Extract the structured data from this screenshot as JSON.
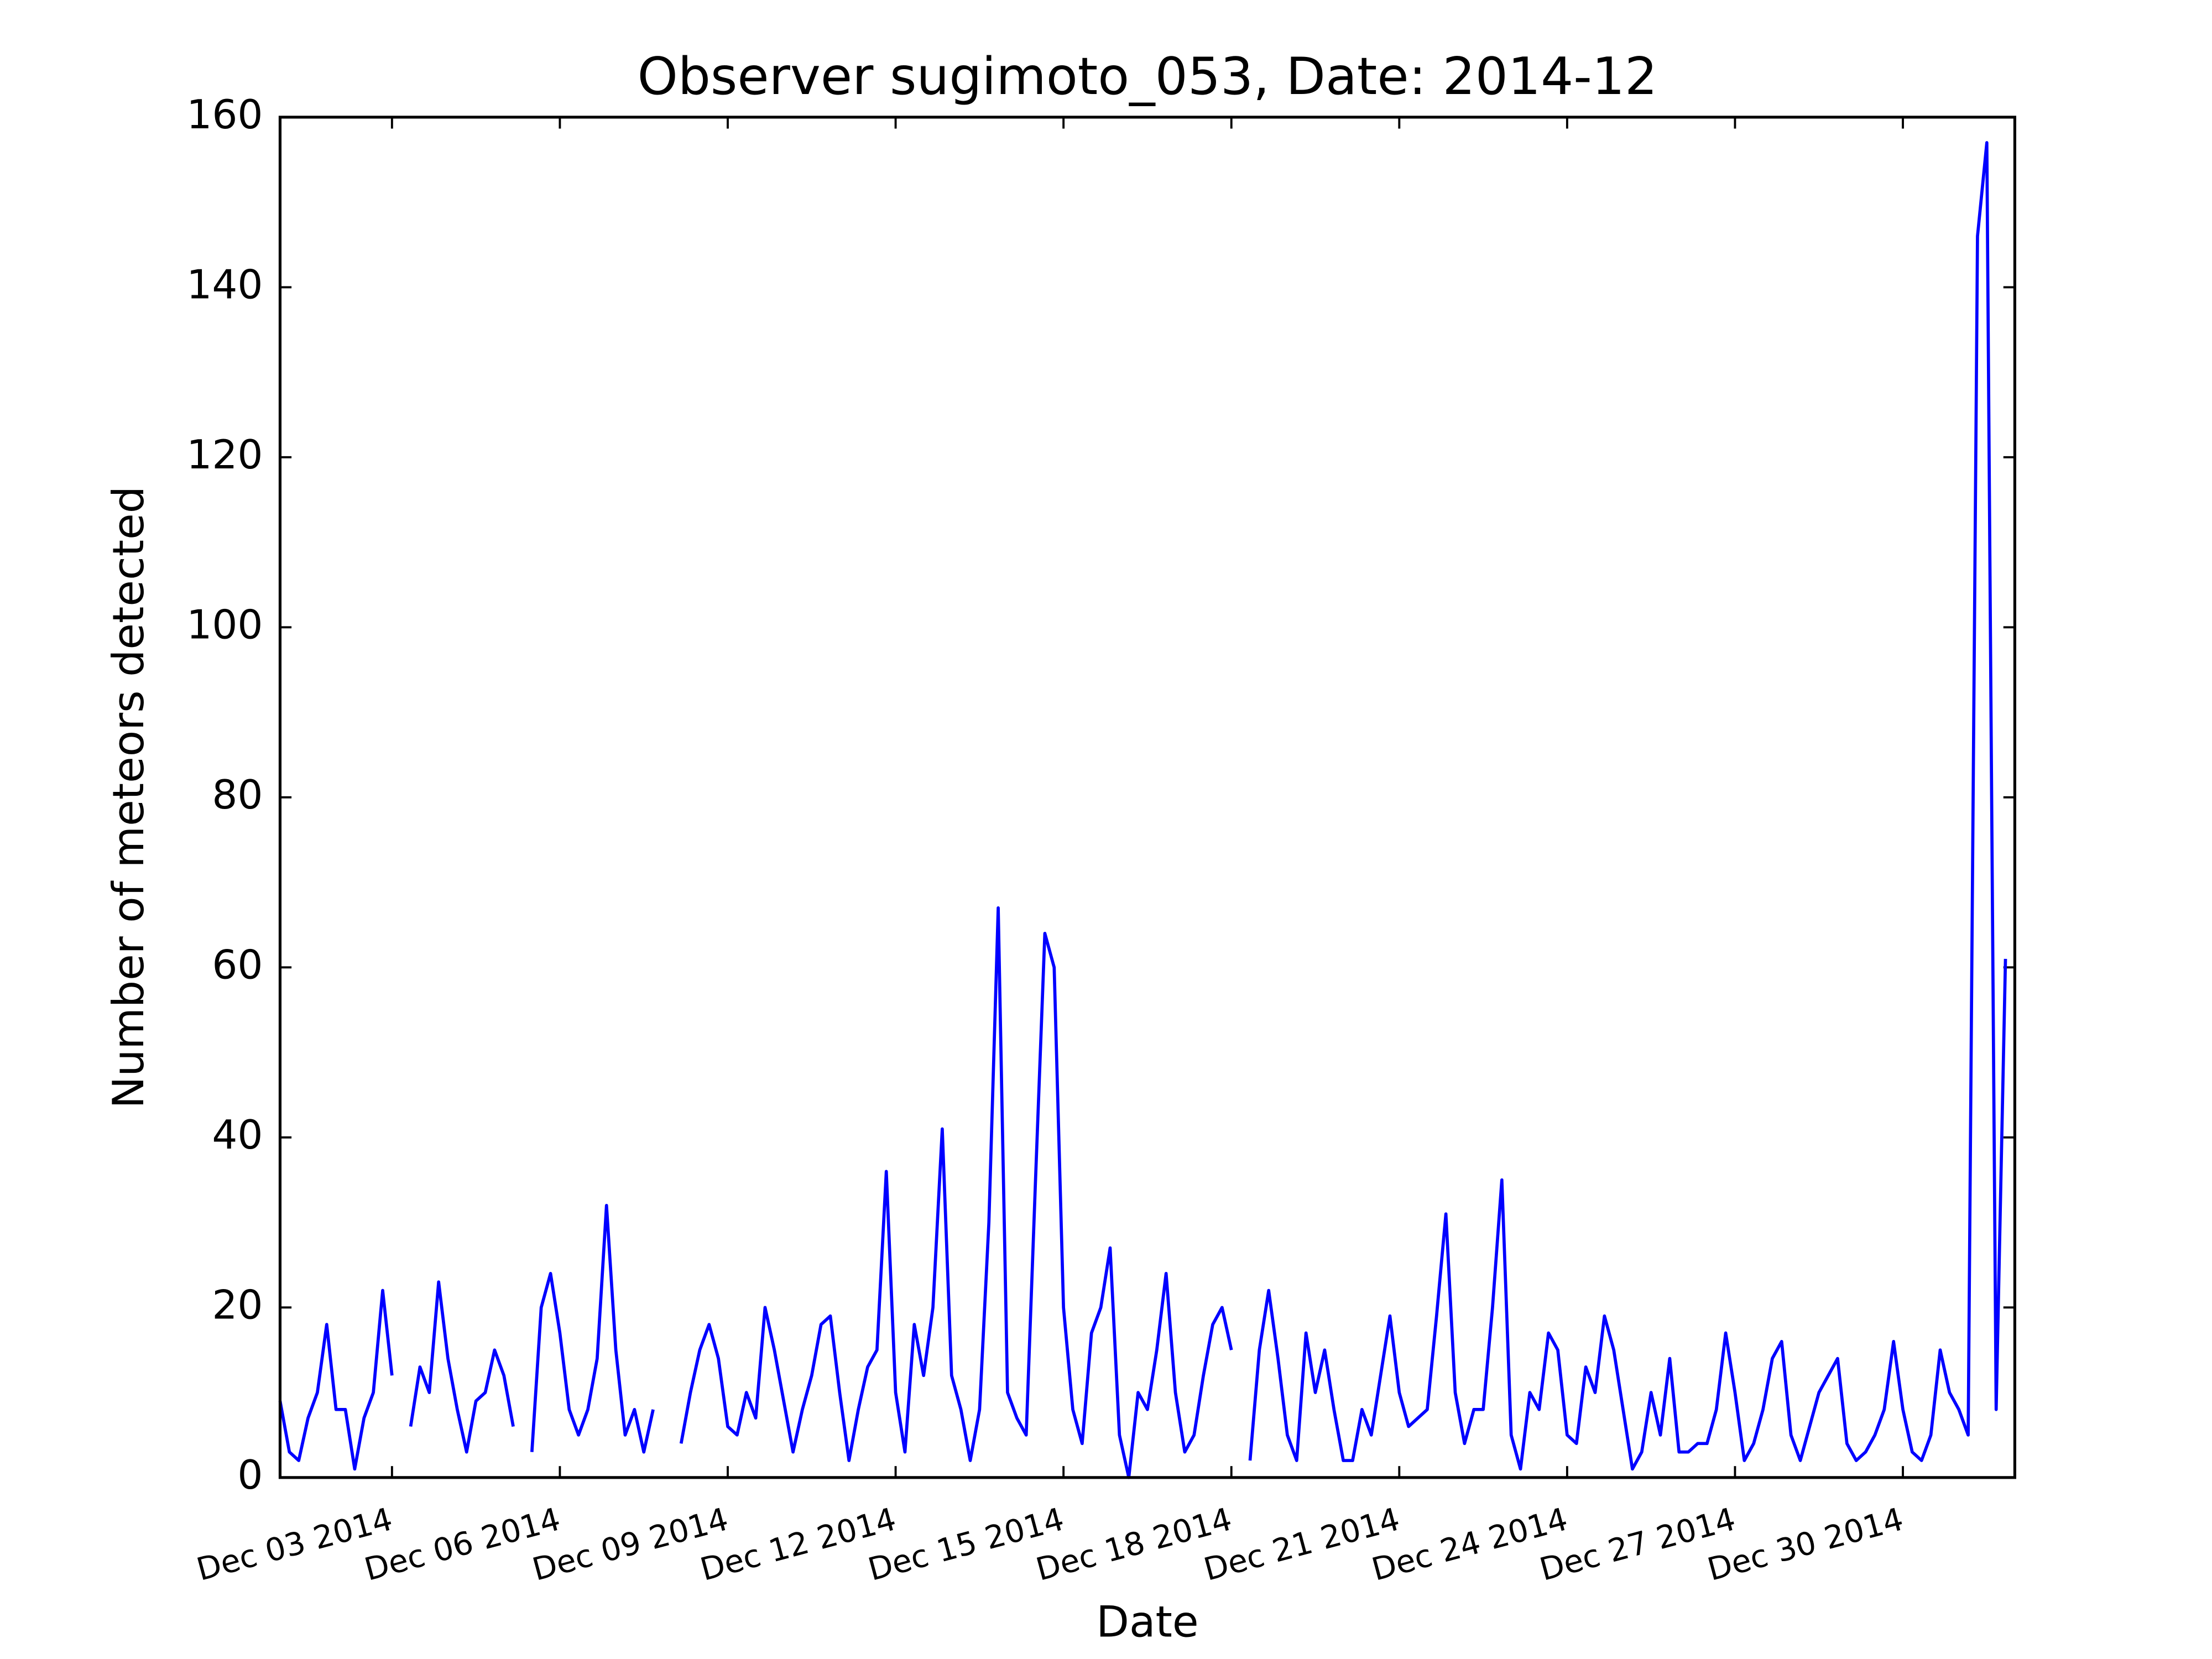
{
  "chart_data": {
    "type": "line",
    "title": "Observer sugimoto_053, Date: 2014-12",
    "xlabel": "Date",
    "ylabel": "Number of meteors detected",
    "color": "#0000ff",
    "x": [
      0,
      4,
      8,
      12,
      16,
      20,
      24,
      28,
      32,
      36,
      40,
      44,
      48,
      52,
      56,
      60,
      64,
      68,
      72,
      76,
      80,
      84,
      88,
      92,
      96,
      100,
      104,
      108,
      112,
      116,
      120,
      124,
      128,
      132,
      136,
      140,
      144,
      148,
      152,
      156,
      160,
      164,
      168,
      172,
      176,
      180,
      184,
      188,
      192,
      196,
      200,
      204,
      208,
      212,
      216,
      220,
      224,
      228,
      232,
      236,
      240,
      244,
      248,
      252,
      256,
      260,
      264,
      268,
      272,
      276,
      280,
      284,
      288,
      292,
      296,
      300,
      304,
      308,
      312,
      316,
      320,
      324,
      328,
      332,
      336,
      340,
      344,
      348,
      352,
      356,
      360,
      364,
      368,
      372,
      376,
      380,
      384,
      388,
      392,
      396,
      400,
      404,
      408,
      412,
      416,
      420,
      424,
      428,
      432,
      436,
      440,
      444,
      448,
      452,
      456,
      460,
      464,
      468,
      472,
      476,
      480,
      484,
      488,
      492,
      496,
      500,
      504,
      508,
      512,
      516,
      520,
      524,
      528,
      532,
      536,
      540,
      544,
      548,
      552,
      556,
      560,
      564,
      568,
      572,
      576,
      580,
      584,
      588,
      592,
      596,
      600,
      604,
      608,
      612,
      616,
      620,
      624,
      628,
      632,
      636,
      640,
      644,
      648,
      652,
      656,
      660,
      664,
      668,
      672,
      676,
      680,
      684,
      688,
      692,
      696,
      700,
      704,
      708,
      712,
      716,
      720,
      724,
      728,
      732,
      736,
      740
    ],
    "values": [
      9,
      3,
      2,
      7,
      10,
      18,
      8,
      8,
      1,
      7,
      10,
      22,
      12,
      null,
      6,
      13,
      10,
      23,
      14,
      8,
      3,
      9,
      10,
      15,
      12,
      6,
      null,
      3,
      20,
      24,
      17,
      8,
      5,
      8,
      14,
      32,
      15,
      5,
      8,
      3,
      8,
      null,
      null,
      4,
      10,
      15,
      18,
      14,
      6,
      5,
      10,
      7,
      20,
      15,
      9,
      3,
      8,
      12,
      18,
      19,
      10,
      2,
      8,
      13,
      15,
      36,
      10,
      3,
      18,
      12,
      20,
      41,
      12,
      8,
      2,
      8,
      30,
      67,
      10,
      7,
      5,
      35,
      64,
      60,
      20,
      8,
      4,
      17,
      20,
      27,
      5,
      0,
      10,
      8,
      15,
      24,
      10,
      3,
      5,
      12,
      18,
      20,
      15,
      null,
      2,
      15,
      22,
      14,
      5,
      2,
      17,
      10,
      15,
      8,
      2,
      2,
      8,
      5,
      12,
      19,
      10,
      6,
      7,
      8,
      19,
      31,
      10,
      4,
      8,
      8,
      20,
      35,
      5,
      1,
      10,
      8,
      17,
      15,
      5,
      4,
      13,
      10,
      19,
      15,
      8,
      1,
      3,
      10,
      5,
      14,
      3,
      3,
      4,
      4,
      8,
      17,
      10,
      2,
      4,
      8,
      14,
      16,
      5,
      2,
      6,
      10,
      12,
      14,
      4,
      2,
      3,
      5,
      8,
      16,
      8,
      3,
      2,
      5,
      15,
      10,
      8,
      5,
      146,
      157,
      8,
      61
    ],
    "xlim": [
      0,
      744
    ],
    "xticks": [
      {
        "value": 48,
        "label": "Dec 03 2014"
      },
      {
        "value": 120,
        "label": "Dec 06 2014"
      },
      {
        "value": 192,
        "label": "Dec 09 2014"
      },
      {
        "value": 264,
        "label": "Dec 12 2014"
      },
      {
        "value": 336,
        "label": "Dec 15 2014"
      },
      {
        "value": 408,
        "label": "Dec 18 2014"
      },
      {
        "value": 480,
        "label": "Dec 21 2014"
      },
      {
        "value": 552,
        "label": "Dec 24 2014"
      },
      {
        "value": 624,
        "label": "Dec 27 2014"
      },
      {
        "value": 696,
        "label": "Dec 30 2014"
      }
    ],
    "ylim": [
      0,
      160
    ],
    "yticks": [
      0,
      20,
      40,
      60,
      80,
      100,
      120,
      140,
      160
    ],
    "grid": false
  }
}
